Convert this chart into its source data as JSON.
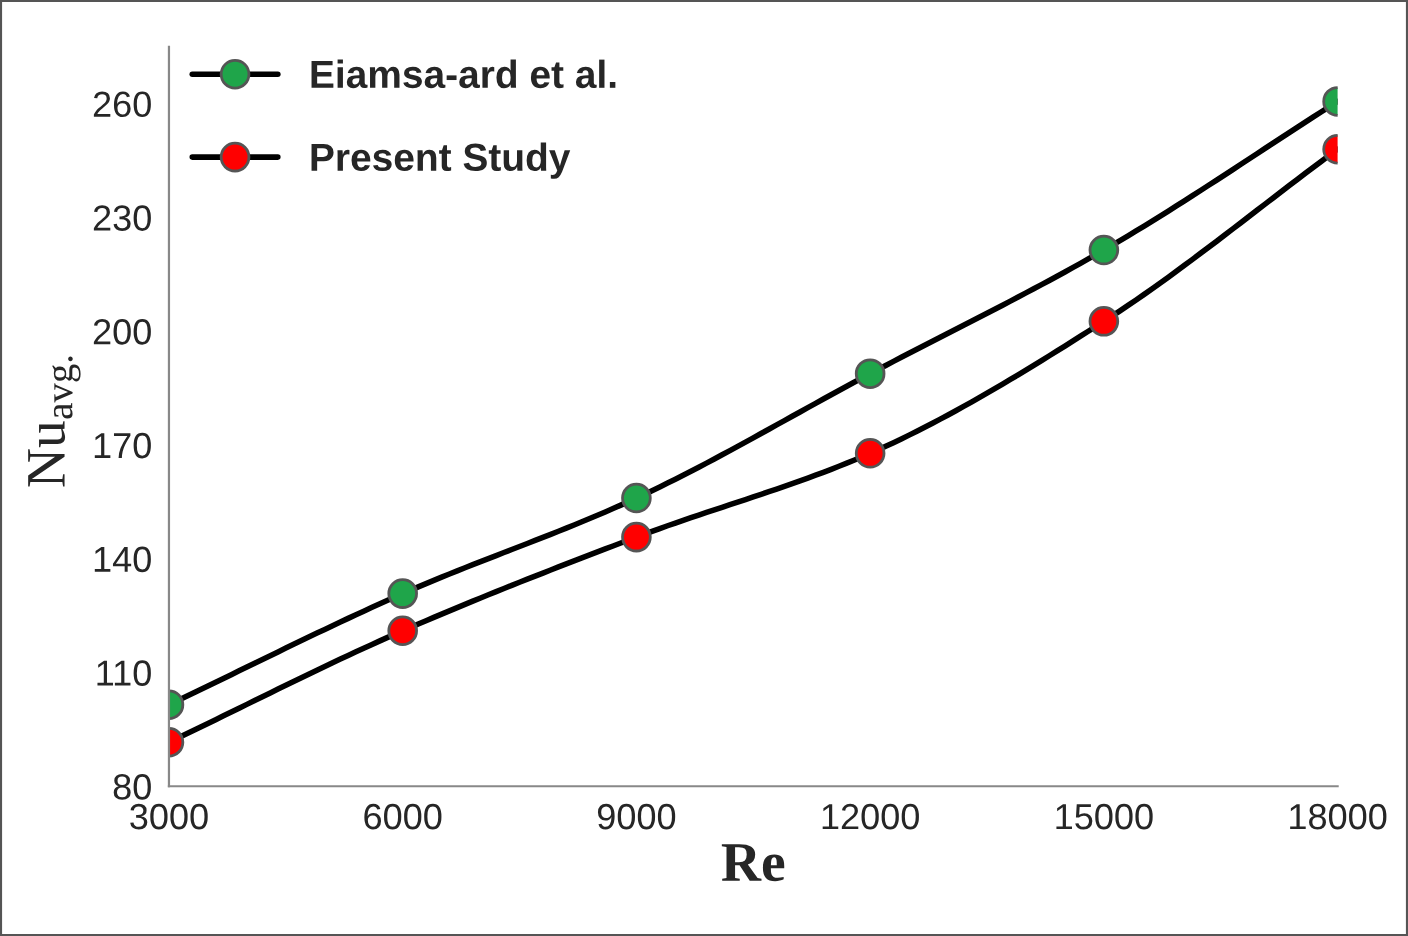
{
  "chart_data": {
    "type": "line",
    "xlabel": "Re",
    "ylabel": "Nu$_{avg.}$",
    "x": [
      3000,
      6000,
      9000,
      12000,
      15000,
      18000
    ],
    "series": [
      {
        "name": "Eiamsa-ard et al.",
        "color": "#1fa54a",
        "values": [
          101.5,
          130.8,
          156,
          188.8,
          221.4,
          260.6
        ]
      },
      {
        "name": "Present Study",
        "color": "#ff0000",
        "values": [
          91.6,
          121,
          145.7,
          167.8,
          202.6,
          248
        ]
      }
    ],
    "xlim": [
      3000,
      18000
    ],
    "xticks": [
      3000,
      6000,
      9000,
      12000,
      15000,
      18000
    ],
    "ylim": [
      80,
      275
    ],
    "yticks": [
      80,
      110,
      140,
      170,
      200,
      230,
      260
    ],
    "grid": false,
    "legend": "top left",
    "marker": "circle",
    "line_style": "solid"
  }
}
